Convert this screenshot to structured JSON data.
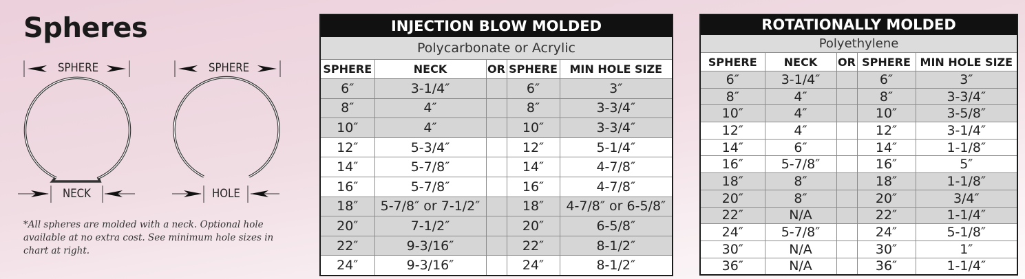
{
  "heading": "Spheres",
  "diagram": {
    "left": {
      "top_label": "SPHERE",
      "bottom_label": "NECK"
    },
    "right": {
      "top_label": "SPHERE",
      "bottom_label": "HOLE"
    }
  },
  "footnote": "*All spheres are molded with a neck. Optional hole available at no extra cost.  See minimum hole sizes in chart at right.",
  "injection": {
    "title": "INJECTION BLOW MOLDED",
    "subtitle": "Polycarbonate or Acrylic",
    "headers": [
      "SPHERE",
      "NECK",
      "OR",
      "SPHERE",
      "MIN HOLE SIZE"
    ],
    "rows": [
      {
        "shade": "gray",
        "cells": [
          "6″",
          "3-1/4″",
          "",
          "6″",
          "3″"
        ]
      },
      {
        "shade": "gray",
        "cells": [
          "8″",
          "4″",
          "",
          "8″",
          "3-3/4″"
        ]
      },
      {
        "shade": "gray",
        "cells": [
          "10″",
          "4″",
          "",
          "10″",
          "3-3/4″"
        ]
      },
      {
        "shade": "white",
        "cells": [
          "12″",
          "5-3/4″",
          "",
          "12″",
          "5-1/4″"
        ]
      },
      {
        "shade": "white",
        "cells": [
          "14″",
          "5-7/8″",
          "",
          "14″",
          "4-7/8″"
        ]
      },
      {
        "shade": "white",
        "cells": [
          "16″",
          "5-7/8″",
          "",
          "16″",
          "4-7/8″"
        ]
      },
      {
        "shade": "gray",
        "cells": [
          "18″",
          "5-7/8″ or 7-1/2″",
          "",
          "18″",
          "4-7/8″ or 6-5/8″"
        ]
      },
      {
        "shade": "gray",
        "cells": [
          "20″",
          "7-1/2″",
          "",
          "20″",
          "6-5/8″"
        ]
      },
      {
        "shade": "gray",
        "cells": [
          "22″",
          "9-3/16″",
          "",
          "22″",
          "8-1/2″"
        ]
      },
      {
        "shade": "white",
        "cells": [
          "24″",
          "9-3/16″",
          "",
          "24″",
          "8-1/2″"
        ]
      }
    ]
  },
  "rotational": {
    "title": "ROTATIONALLY MOLDED",
    "subtitle": "Polyethylene",
    "headers": [
      "SPHERE",
      "NECK",
      "OR",
      "SPHERE",
      "MIN HOLE SIZE"
    ],
    "rows": [
      {
        "shade": "gray",
        "cells": [
          "6″",
          "3-1/4″",
          "",
          "6″",
          "3″"
        ]
      },
      {
        "shade": "gray",
        "cells": [
          "8″",
          "4″",
          "",
          "8″",
          "3-3/4″"
        ]
      },
      {
        "shade": "gray",
        "cells": [
          "10″",
          "4″",
          "",
          "10″",
          "3-5/8″"
        ]
      },
      {
        "shade": "white",
        "cells": [
          "12″",
          "4″",
          "",
          "12″",
          "3-1/4″"
        ]
      },
      {
        "shade": "white",
        "cells": [
          "14″",
          "6″",
          "",
          "14″",
          "1-1/8″"
        ]
      },
      {
        "shade": "white",
        "cells": [
          "16″",
          "5-7/8″",
          "",
          "16″",
          "5″"
        ]
      },
      {
        "shade": "gray",
        "cells": [
          "18″",
          "8″",
          "",
          "18″",
          "1-1/8″"
        ]
      },
      {
        "shade": "gray",
        "cells": [
          "20″",
          "8″",
          "",
          "20″",
          "3/4″"
        ]
      },
      {
        "shade": "gray",
        "cells": [
          "22″",
          "N/A",
          "",
          "22″",
          "1-1/4″"
        ]
      },
      {
        "shade": "white",
        "cells": [
          "24″",
          "5-7/8″",
          "",
          "24″",
          "5-1/8″"
        ]
      },
      {
        "shade": "white",
        "cells": [
          "30″",
          "N/A",
          "",
          "30″",
          "1″"
        ]
      },
      {
        "shade": "white",
        "cells": [
          "36″",
          "N/A",
          "",
          "36″",
          "1-1/4″"
        ]
      }
    ]
  }
}
